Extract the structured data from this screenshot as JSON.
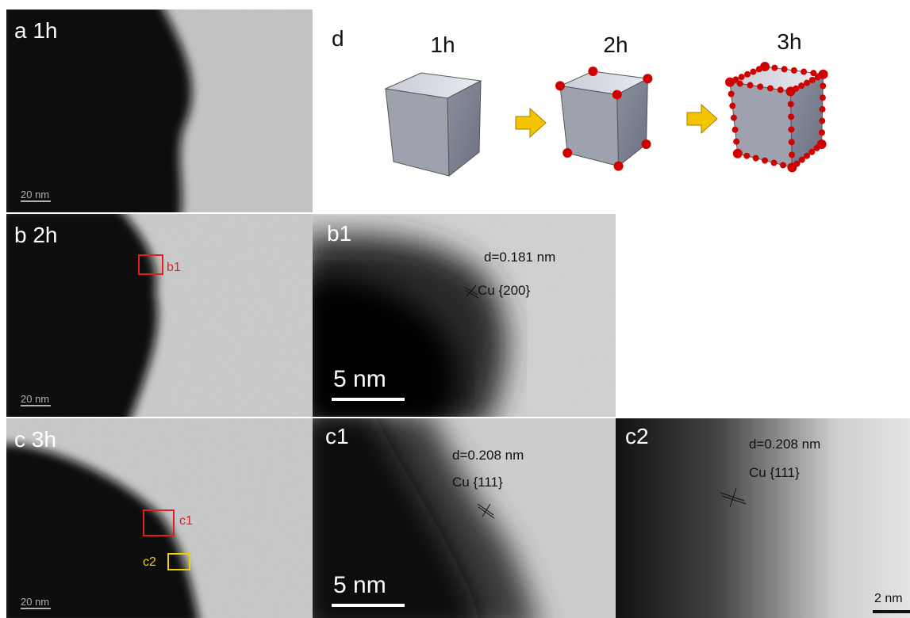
{
  "panels": {
    "a": {
      "label": "a 1h",
      "scale": "20 nm"
    },
    "d": {
      "label": "d",
      "stages": [
        "1h",
        "2h",
        "3h"
      ]
    },
    "b": {
      "label": "b 2h",
      "box": "b1",
      "scale": "20 nm"
    },
    "b1": {
      "label": "b1",
      "spacing": "d=0.181 nm",
      "plane": "Cu {200}",
      "scale": "5 nm"
    },
    "c": {
      "label": "c 3h",
      "boxes": [
        "c1",
        "c2"
      ],
      "scale": "20 nm"
    },
    "c1": {
      "label": "c1",
      "spacing": "d=0.208 nm",
      "plane": "Cu {111}",
      "scale": "5 nm"
    },
    "c2": {
      "label": "c2",
      "spacing": "d=0.208 nm",
      "plane": "Cu {111}",
      "scale": "2 nm"
    }
  }
}
